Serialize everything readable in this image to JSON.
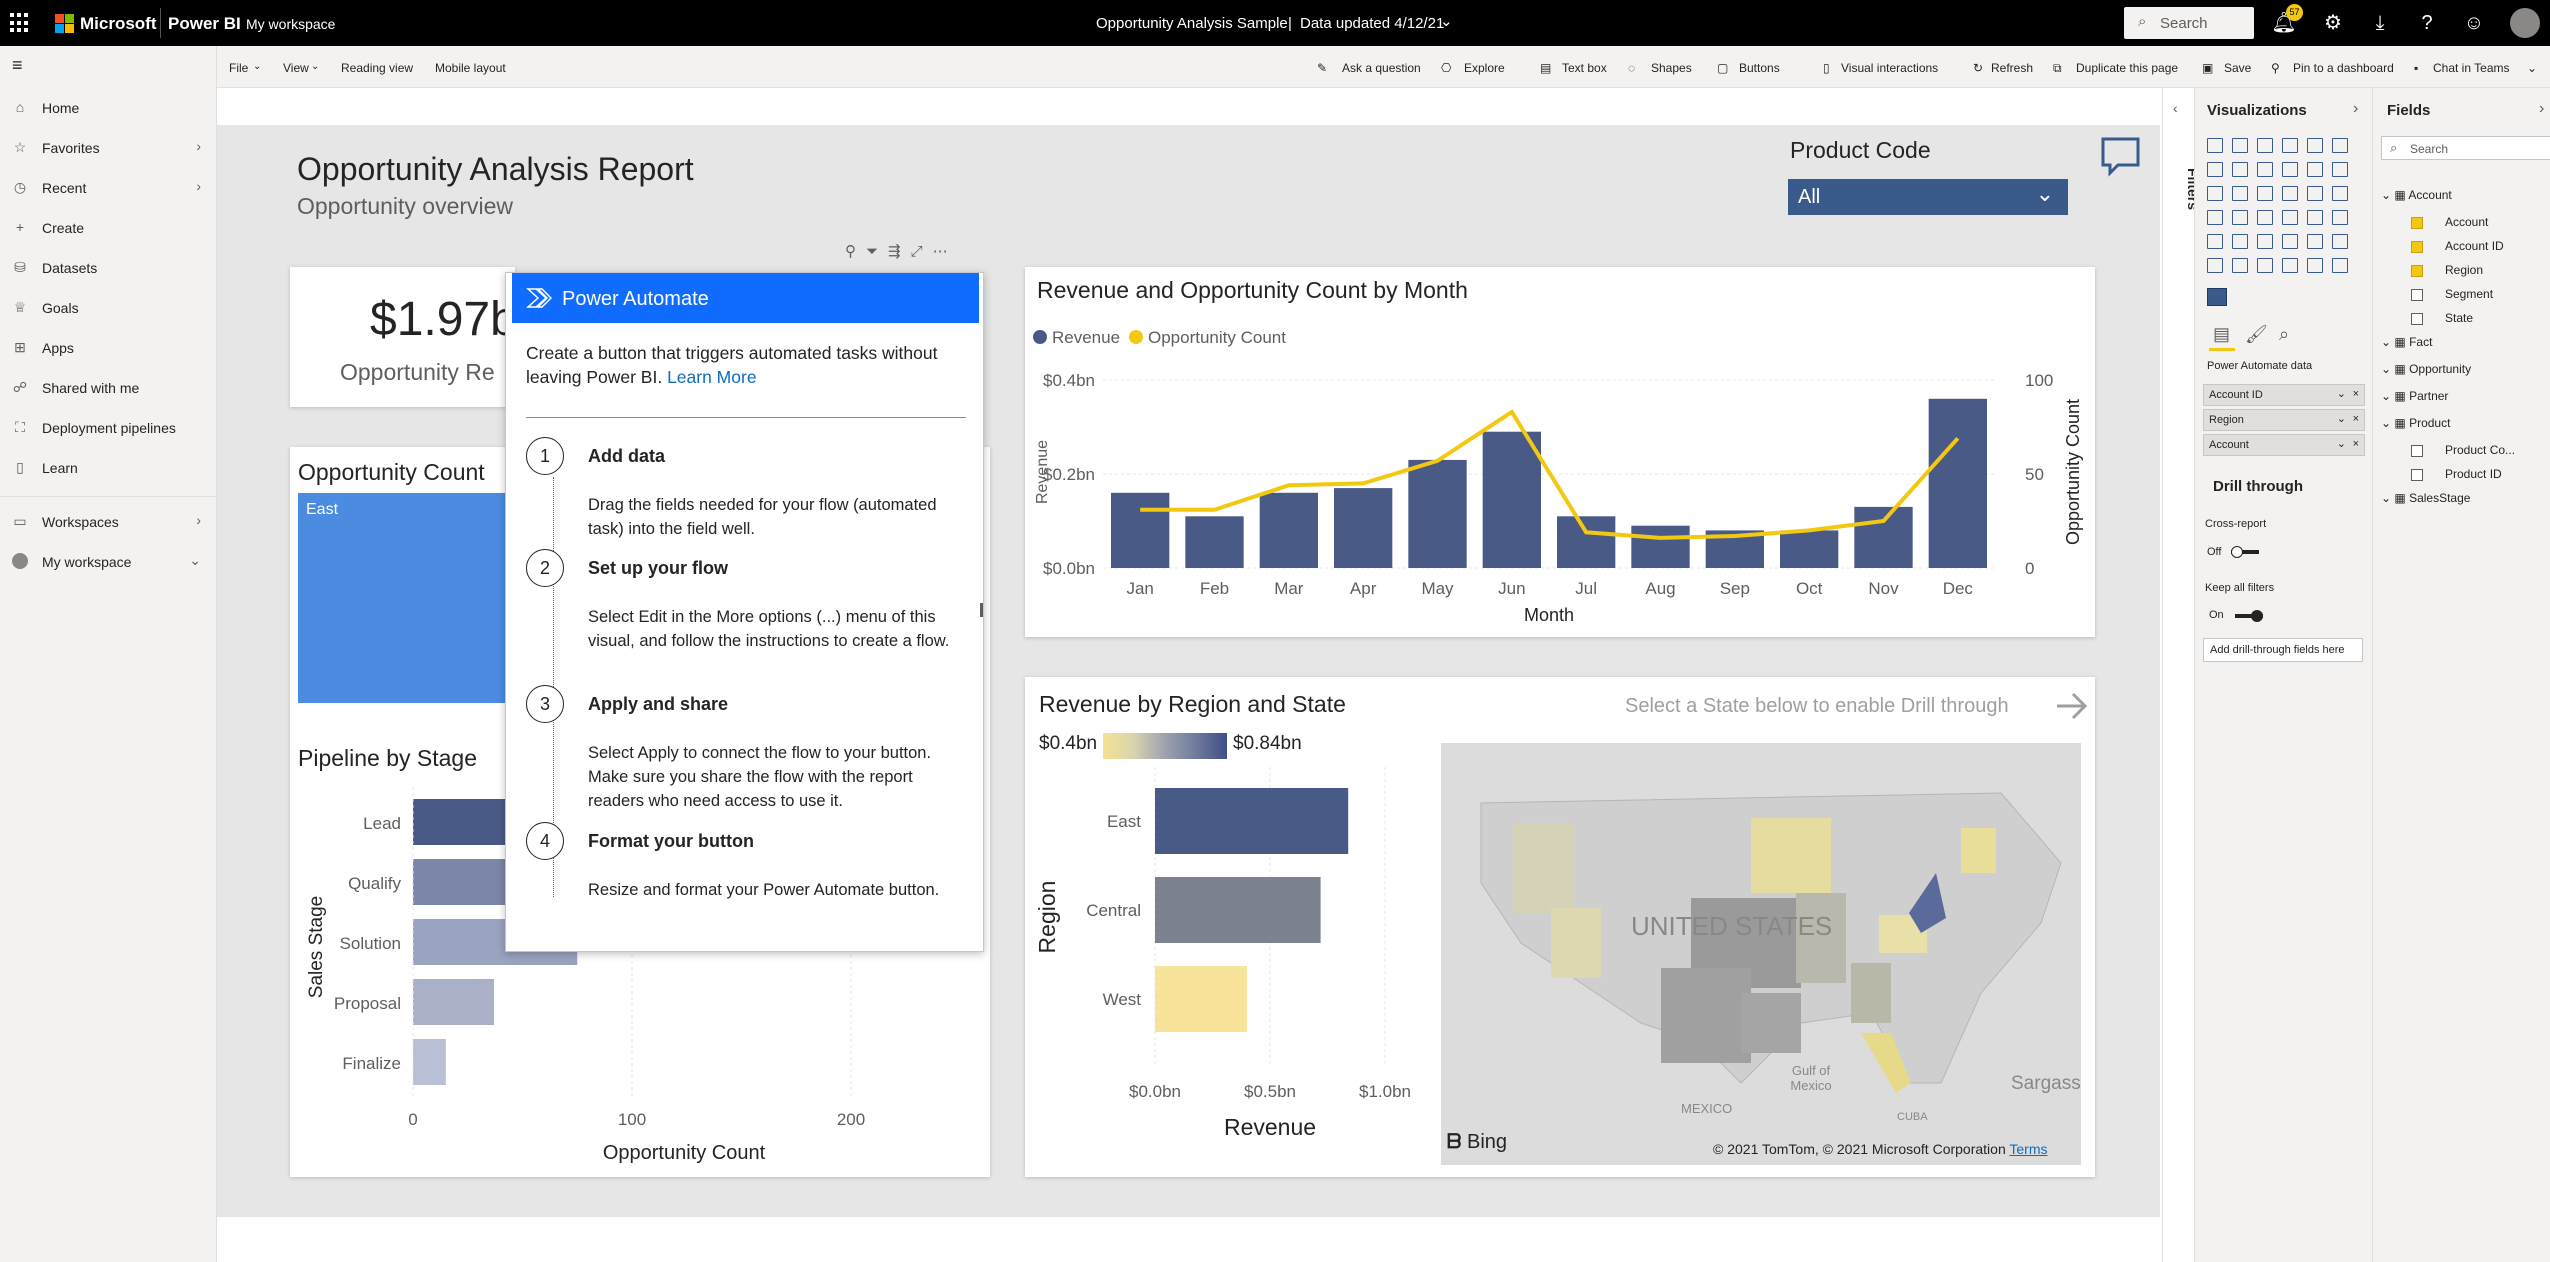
{
  "topbar": {
    "brand": "Microsoft",
    "product": "Power BI",
    "workspace": "My workspace",
    "report_title": "Opportunity Analysis Sample",
    "separator": "|",
    "data_updated": "Data updated 4/12/21",
    "search_placeholder": "Search",
    "notifications_count": "57"
  },
  "leftnav": {
    "items": [
      {
        "label": "Home",
        "icon": "home-icon"
      },
      {
        "label": "Favorites",
        "icon": "star-icon"
      },
      {
        "label": "Recent",
        "icon": "clock-icon"
      },
      {
        "label": "Create",
        "icon": "plus-icon"
      },
      {
        "label": "Datasets",
        "icon": "database-icon"
      },
      {
        "label": "Goals",
        "icon": "trophy-icon"
      },
      {
        "label": "Apps",
        "icon": "apps-icon"
      },
      {
        "label": "Shared with me",
        "icon": "person-icon"
      },
      {
        "label": "Deployment pipelines",
        "icon": "pipeline-icon"
      },
      {
        "label": "Learn",
        "icon": "book-icon"
      },
      {
        "label": "Workspaces",
        "icon": "workspaces-icon"
      },
      {
        "label": "My workspace",
        "icon": "avatar"
      }
    ]
  },
  "cmdbar": {
    "file": "File",
    "view": "View",
    "reading_view": "Reading view",
    "mobile_layout": "Mobile layout",
    "ask": "Ask a question",
    "explore": "Explore",
    "textbox": "Text box",
    "shapes": "Shapes",
    "buttons": "Buttons",
    "visual_interactions": "Visual interactions",
    "refresh": "Refresh",
    "duplicate": "Duplicate this page",
    "save": "Save",
    "pin": "Pin to a dashboard",
    "chat": "Chat in Teams"
  },
  "report": {
    "title": "Opportunity Analysis Report",
    "subtitle": "Opportunity overview",
    "slicer_label": "Product Code",
    "slicer_value": "All",
    "kpi_value": "$1.97b",
    "kpi_label": "Opportunity Re",
    "count_title": "Opportunity Count",
    "count_tile": "East",
    "pipeline_title": "Pipeline by Stage",
    "rev_title": "Revenue and Opportunity Count by Month",
    "map_title": "Revenue by Region and State",
    "drill_hint": "Select a State below to enable Drill through",
    "legend_min": "$0.4bn",
    "legend_max": "$0.84bn",
    "map_label": "UNITED STATES",
    "map_gulf": "Gulf of Mexico",
    "map_mexico": "MEXICO",
    "map_cuba": "CUBA",
    "map_sargasso": "Sargass",
    "bing": "Bing",
    "copyright": "© 2021 TomTom, © 2021 Microsoft Corporation",
    "terms": "Terms"
  },
  "power_automate": {
    "title": "Power Automate",
    "desc": "Create a button that triggers automated tasks without leaving Power BI.",
    "learn_more": "Learn More",
    "steps": [
      {
        "num": "1",
        "title": "Add data",
        "text": "Drag the fields needed for your flow (automated task) into the field well."
      },
      {
        "num": "2",
        "title": "Set up your flow",
        "text": "Select Edit in the More options (...) menu of this visual, and follow the instructions to create a flow."
      },
      {
        "num": "3",
        "title": "Apply and share",
        "text": "Select Apply to connect the flow to your button. Make sure you share the flow with the report readers who need access to use it."
      },
      {
        "num": "4",
        "title": "Format your button",
        "text": "Resize and format your Power Automate button."
      }
    ]
  },
  "panes": {
    "filters": "Filters",
    "visualizations": "Visualizations",
    "fields": "Fields",
    "fields_search": "Search",
    "pa_data": "Power Automate data",
    "wells": [
      "Account ID",
      "Region",
      "Account"
    ],
    "drill_through": "Drill through",
    "cross_report": "Cross-report",
    "off": "Off",
    "keep_filters": "Keep all filters",
    "on": "On",
    "add_drill": "Add drill-through fields here",
    "tables": [
      {
        "name": "Account",
        "fields": [
          {
            "name": "Account",
            "checked": true
          },
          {
            "name": "Account ID",
            "checked": true
          },
          {
            "name": "Region",
            "checked": true
          },
          {
            "name": "Segment",
            "checked": false
          },
          {
            "name": "State",
            "checked": false
          }
        ]
      },
      {
        "name": "Fact",
        "fields": []
      },
      {
        "name": "Opportunity",
        "fields": []
      },
      {
        "name": "Partner",
        "fields": []
      },
      {
        "name": "Product",
        "fields": [
          {
            "name": "Product Co...",
            "checked": false
          },
          {
            "name": "Product ID",
            "checked": false
          }
        ]
      },
      {
        "name": "SalesStage",
        "fields": []
      }
    ]
  },
  "chart_data": [
    {
      "type": "bar",
      "title": "Revenue and Opportunity Count by Month",
      "categories": [
        "Jan",
        "Feb",
        "Mar",
        "Apr",
        "May",
        "Jun",
        "Jul",
        "Aug",
        "Sep",
        "Oct",
        "Nov",
        "Dec"
      ],
      "series": [
        {
          "name": "Revenue",
          "type": "bar",
          "values": [
            0.16,
            0.11,
            0.16,
            0.17,
            0.23,
            0.29,
            0.11,
            0.09,
            0.08,
            0.08,
            0.13,
            0.36
          ],
          "color": "#4a5a87"
        },
        {
          "name": "Opportunity Count",
          "type": "line",
          "values": [
            31,
            31,
            44,
            45,
            57,
            83,
            19,
            16,
            17,
            20,
            25,
            69
          ],
          "color": "#f2c811"
        }
      ],
      "xlabel": "Month",
      "ylabel": "Revenue",
      "y2label": "Opportunity Count",
      "yticks": [
        "$0.0bn",
        "$0.2bn",
        "$0.4bn"
      ],
      "y2ticks": [
        "0",
        "50",
        "100"
      ],
      "ylim": [
        0,
        0.4
      ],
      "y2lim": [
        0,
        100
      ]
    },
    {
      "type": "bar",
      "title": "Pipeline by Stage",
      "orientation": "horizontal",
      "categories": [
        "Lead",
        "Qualify",
        "Solution",
        "Proposal",
        "Finalize"
      ],
      "values": [
        150,
        110,
        75,
        37,
        15
      ],
      "xlabel": "Opportunity Count",
      "ylabel": "Sales Stage",
      "xticks": [
        "0",
        "100",
        "200"
      ],
      "xlim": [
        0,
        250
      ]
    },
    {
      "type": "bar",
      "title": "Revenue by Region and State",
      "orientation": "horizontal",
      "categories": [
        "East",
        "Central",
        "West"
      ],
      "values": [
        0.84,
        0.72,
        0.4
      ],
      "colors": [
        "#4a5a87",
        "#7c8290",
        "#f7e49a"
      ],
      "xlabel": "Revenue",
      "ylabel": "Region",
      "xticks": [
        "$0.0bn",
        "$0.5bn",
        "$1.0bn"
      ],
      "xlim": [
        0,
        1.0
      ]
    }
  ]
}
